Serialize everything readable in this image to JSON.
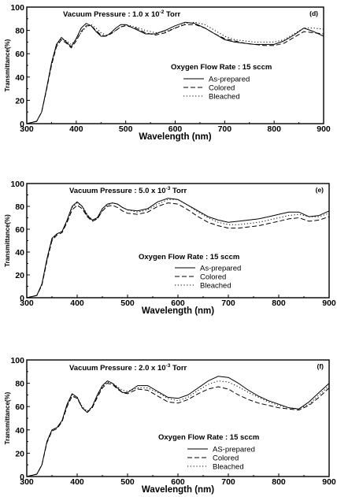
{
  "chart_data": [
    {
      "type": "line",
      "panel_label": "(d)",
      "title": "Vacuum Pressure : 1.0 x 10",
      "title_sup": "-2",
      "title_suffix": " Torr",
      "annotation": "Oxygen Flow Rate : 15 sccm",
      "xlabel": "Wavelength (nm)",
      "ylabel": "Transmittance(%)",
      "xlim": [
        300,
        900
      ],
      "ylim": [
        0,
        100
      ],
      "xticks": [
        300,
        400,
        500,
        600,
        700,
        800,
        900
      ],
      "yticks": [
        0,
        20,
        40,
        60,
        80,
        100
      ],
      "legend_position": "center-right",
      "series": [
        {
          "name": "As-prepared",
          "style": "solid",
          "x": [
            300,
            320,
            330,
            340,
            350,
            360,
            370,
            380,
            390,
            400,
            410,
            420,
            430,
            440,
            450,
            460,
            470,
            480,
            490,
            500,
            520,
            540,
            560,
            580,
            600,
            620,
            640,
            660,
            680,
            700,
            720,
            740,
            760,
            780,
            800,
            820,
            840,
            860,
            880,
            900
          ],
          "y": [
            0,
            2,
            10,
            30,
            52,
            68,
            74,
            70,
            66,
            73,
            82,
            86,
            84,
            79,
            75,
            75,
            78,
            82,
            85,
            85,
            81,
            77,
            77,
            80,
            84,
            87,
            86,
            82,
            77,
            72,
            70,
            69,
            68,
            68,
            68,
            71,
            76,
            82,
            79,
            75
          ]
        },
        {
          "name": "Colored",
          "style": "dashed",
          "x": [
            300,
            320,
            330,
            340,
            350,
            360,
            370,
            380,
            390,
            400,
            410,
            420,
            430,
            440,
            450,
            460,
            470,
            480,
            490,
            500,
            520,
            540,
            560,
            580,
            600,
            620,
            640,
            660,
            680,
            700,
            720,
            740,
            760,
            780,
            800,
            820,
            840,
            860,
            880,
            900
          ],
          "y": [
            0,
            2,
            10,
            29,
            50,
            66,
            72,
            69,
            65,
            71,
            79,
            84,
            84,
            80,
            76,
            75,
            77,
            80,
            83,
            84,
            82,
            78,
            76,
            78,
            82,
            85,
            85,
            82,
            77,
            73,
            71,
            69,
            68,
            67,
            67,
            69,
            74,
            79,
            78,
            77
          ]
        },
        {
          "name": "Bleached",
          "style": "dotted",
          "x": [
            300,
            320,
            330,
            340,
            350,
            360,
            370,
            380,
            390,
            400,
            410,
            420,
            430,
            440,
            450,
            460,
            470,
            480,
            490,
            500,
            520,
            540,
            560,
            580,
            600,
            620,
            640,
            660,
            680,
            700,
            720,
            740,
            760,
            780,
            800,
            820,
            840,
            860,
            880,
            900
          ],
          "y": [
            0,
            2,
            10,
            30,
            51,
            67,
            73,
            71,
            68,
            72,
            78,
            83,
            85,
            82,
            78,
            76,
            77,
            80,
            83,
            85,
            83,
            80,
            78,
            79,
            82,
            86,
            87,
            85,
            80,
            75,
            72,
            71,
            70,
            70,
            70,
            72,
            77,
            82,
            82,
            81
          ]
        }
      ]
    },
    {
      "type": "line",
      "panel_label": "(e)",
      "title": "Vacuum Pressure : 5.0 x 10",
      "title_sup": "-3",
      "title_suffix": " Torr",
      "annotation": "Oxygen Flow Rate : 15 sccm",
      "xlabel": "Wavelength (nm)",
      "ylabel": "Transmittance(%)",
      "xlim": [
        300,
        900
      ],
      "ylim": [
        0,
        100
      ],
      "xticks": [
        300,
        400,
        500,
        600,
        700,
        800,
        900
      ],
      "yticks": [
        0,
        20,
        40,
        60,
        80,
        100
      ],
      "legend_position": "center-right",
      "series": [
        {
          "name": "As-prepared",
          "style": "solid",
          "x": [
            300,
            320,
            330,
            340,
            350,
            360,
            370,
            380,
            390,
            400,
            410,
            420,
            430,
            440,
            450,
            460,
            470,
            480,
            490,
            500,
            520,
            540,
            560,
            580,
            600,
            620,
            640,
            660,
            680,
            700,
            720,
            740,
            760,
            780,
            800,
            820,
            840,
            860,
            880,
            900
          ],
          "y": [
            0,
            2,
            12,
            34,
            52,
            56,
            58,
            68,
            80,
            84,
            80,
            72,
            68,
            70,
            78,
            82,
            83,
            82,
            79,
            77,
            76,
            78,
            84,
            87,
            86,
            81,
            76,
            71,
            68,
            66,
            67,
            68,
            69,
            71,
            73,
            75,
            75,
            71,
            72,
            76
          ]
        },
        {
          "name": "Colored",
          "style": "dashed",
          "x": [
            300,
            320,
            330,
            340,
            350,
            360,
            370,
            380,
            390,
            400,
            410,
            420,
            430,
            440,
            450,
            460,
            470,
            480,
            490,
            500,
            520,
            540,
            560,
            580,
            600,
            620,
            640,
            660,
            680,
            700,
            720,
            740,
            760,
            780,
            800,
            820,
            840,
            860,
            880,
            900
          ],
          "y": [
            0,
            2,
            11,
            32,
            50,
            55,
            57,
            66,
            77,
            81,
            78,
            71,
            67,
            69,
            76,
            80,
            81,
            79,
            76,
            74,
            73,
            75,
            80,
            83,
            82,
            77,
            71,
            66,
            63,
            61,
            61,
            62,
            63,
            65,
            67,
            69,
            70,
            67,
            68,
            71
          ]
        },
        {
          "name": "Bleached",
          "style": "dotted",
          "x": [
            300,
            320,
            330,
            340,
            350,
            360,
            370,
            380,
            390,
            400,
            410,
            420,
            430,
            440,
            450,
            460,
            470,
            480,
            490,
            500,
            520,
            540,
            560,
            580,
            600,
            620,
            640,
            660,
            680,
            700,
            720,
            740,
            760,
            780,
            800,
            820,
            840,
            860,
            880,
            900
          ],
          "y": [
            0,
            2,
            12,
            33,
            51,
            56,
            58,
            67,
            79,
            83,
            80,
            73,
            68,
            69,
            76,
            81,
            83,
            82,
            79,
            77,
            75,
            77,
            82,
            86,
            86,
            81,
            75,
            70,
            66,
            64,
            64,
            65,
            66,
            68,
            70,
            72,
            73,
            71,
            71,
            74
          ]
        }
      ]
    },
    {
      "type": "line",
      "panel_label": "(f)",
      "title": "Vacuum Pressure : 2.0 x 10",
      "title_sup": "-3",
      "title_suffix": " Torr",
      "annotation": "Oxygen Flow Rate : 15 sccm",
      "xlabel": "Wavelength (nm)",
      "ylabel": "Transmittance(%)",
      "xlim": [
        300,
        900
      ],
      "ylim": [
        0,
        100
      ],
      "xticks": [
        300,
        400,
        500,
        600,
        700,
        800,
        900
      ],
      "yticks": [
        0,
        20,
        40,
        60,
        80,
        100
      ],
      "legend_position": "center-right",
      "series": [
        {
          "name": "AS-prepared",
          "style": "solid",
          "x": [
            300,
            320,
            330,
            340,
            350,
            360,
            370,
            380,
            390,
            400,
            410,
            420,
            430,
            440,
            450,
            460,
            470,
            480,
            490,
            500,
            520,
            540,
            560,
            580,
            600,
            620,
            640,
            660,
            680,
            700,
            720,
            740,
            760,
            780,
            800,
            820,
            840,
            860,
            880,
            900
          ],
          "y": [
            0,
            2,
            10,
            30,
            40,
            42,
            48,
            62,
            71,
            68,
            59,
            55,
            60,
            70,
            78,
            82,
            80,
            76,
            72,
            72,
            78,
            78,
            73,
            68,
            67,
            70,
            76,
            82,
            86,
            85,
            80,
            74,
            69,
            65,
            62,
            59,
            58,
            64,
            72,
            80
          ]
        },
        {
          "name": "Colored",
          "style": "dashed",
          "x": [
            300,
            320,
            330,
            340,
            350,
            360,
            370,
            380,
            390,
            400,
            410,
            420,
            430,
            440,
            450,
            460,
            470,
            480,
            490,
            500,
            520,
            540,
            560,
            580,
            600,
            620,
            640,
            660,
            680,
            700,
            720,
            740,
            760,
            780,
            800,
            820,
            840,
            860,
            880,
            900
          ],
          "y": [
            0,
            2,
            10,
            29,
            39,
            41,
            47,
            60,
            69,
            67,
            59,
            55,
            59,
            68,
            76,
            80,
            79,
            75,
            72,
            71,
            75,
            74,
            69,
            64,
            63,
            66,
            71,
            75,
            77,
            75,
            70,
            66,
            63,
            61,
            59,
            58,
            57,
            61,
            68,
            76
          ]
        },
        {
          "name": "Bleached",
          "style": "dotted",
          "x": [
            300,
            320,
            330,
            340,
            350,
            360,
            370,
            380,
            390,
            400,
            410,
            420,
            430,
            440,
            450,
            460,
            470,
            480,
            490,
            500,
            520,
            540,
            560,
            580,
            600,
            620,
            640,
            660,
            680,
            700,
            720,
            740,
            760,
            780,
            800,
            820,
            840,
            860,
            880,
            900
          ],
          "y": [
            0,
            2,
            10,
            30,
            40,
            42,
            48,
            61,
            70,
            68,
            60,
            56,
            60,
            69,
            77,
            81,
            80,
            77,
            74,
            73,
            76,
            76,
            72,
            67,
            65,
            68,
            74,
            79,
            82,
            81,
            77,
            72,
            68,
            64,
            61,
            59,
            58,
            62,
            70,
            78
          ]
        }
      ]
    }
  ]
}
